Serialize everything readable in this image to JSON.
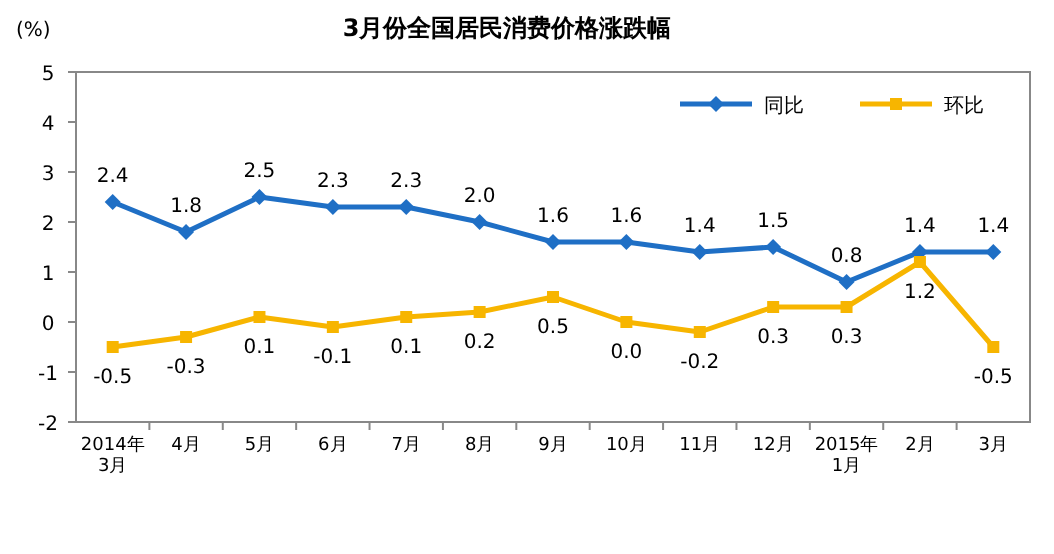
{
  "chart_data": {
    "type": "line",
    "title": "3月份全国居民消费价格涨跌幅",
    "ylabel": "(%)",
    "categories": [
      "2014年\n3月",
      "4月",
      "5月",
      "6月",
      "7月",
      "8月",
      "9月",
      "10月",
      "11月",
      "12月",
      "2015年\n1月",
      "2月",
      "3月"
    ],
    "series": [
      {
        "name": "同比",
        "color": "#1f6fc5",
        "marker": "diamond",
        "values": [
          2.4,
          1.8,
          2.5,
          2.3,
          2.3,
          2.0,
          1.6,
          1.6,
          1.4,
          1.5,
          0.8,
          1.4,
          1.4
        ],
        "value_labels": [
          "2.4",
          "1.8",
          "2.5",
          "2.3",
          "2.3",
          "2.0",
          "1.6",
          "1.6",
          "1.4",
          "1.5",
          "0.8",
          "1.4",
          "1.4"
        ]
      },
      {
        "name": "环比",
        "color": "#f7b500",
        "marker": "square",
        "values": [
          -0.5,
          -0.3,
          0.1,
          -0.1,
          0.1,
          0.2,
          0.5,
          0.0,
          -0.2,
          0.3,
          0.3,
          1.2,
          -0.5
        ],
        "value_labels": [
          "-0.5",
          "-0.3",
          "0.1",
          "-0.1",
          "0.1",
          "0.2",
          "0.5",
          "0.0",
          "-0.2",
          "0.3",
          "0.3",
          "1.2",
          "-0.5"
        ]
      }
    ],
    "ylim": [
      -2,
      5
    ],
    "yticks": [
      -2,
      -1,
      0,
      1,
      2,
      3,
      4,
      5
    ],
    "legend": "top right"
  }
}
